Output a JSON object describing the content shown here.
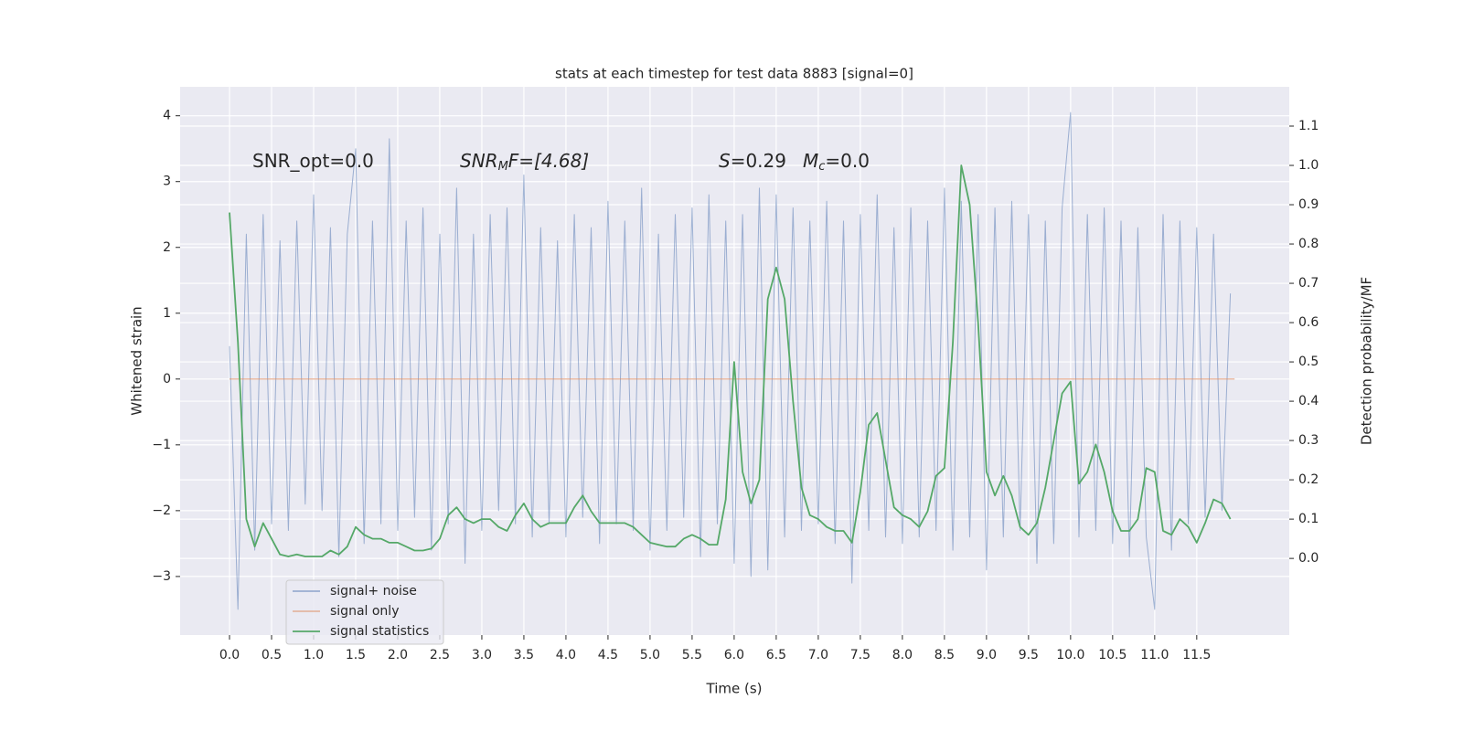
{
  "chart_data": {
    "type": "line",
    "title": "stats at each timestep for test data 8883 [signal=0]",
    "xlabel": "Time (s)",
    "ylabel": "Whitened strain",
    "y2label": "Detection probability/MF",
    "annotations": [
      [
        "SNR_opt=0.0"
      ],
      [
        "SNR",
        "M",
        "F=[4.68]"
      ],
      [
        "S",
        "=0.29",
        "M",
        "c",
        "=0.0"
      ]
    ],
    "grid": true,
    "legend": "lower left",
    "xlim": [
      -0.587,
      12.6
    ],
    "ylim": [
      -3.89,
      4.44
    ],
    "y2lim": [
      -0.195,
      1.2
    ],
    "xticks": [
      {
        "value": 0,
        "label": "0.0"
      },
      {
        "value": 0.5,
        "label": "0.5"
      },
      {
        "value": 1,
        "label": "1.0"
      },
      {
        "value": 1.5,
        "label": "1.5"
      },
      {
        "value": 2,
        "label": "2.0"
      },
      {
        "value": 2.5,
        "label": "2.5"
      },
      {
        "value": 3,
        "label": "3.0"
      },
      {
        "value": 3.5,
        "label": "3.5"
      },
      {
        "value": 4,
        "label": "4.0"
      },
      {
        "value": 4.5,
        "label": "4.5"
      },
      {
        "value": 5,
        "label": "5.0"
      },
      {
        "value": 5.5,
        "label": "5.5"
      },
      {
        "value": 6,
        "label": "6.0"
      },
      {
        "value": 6.5,
        "label": "6.5"
      },
      {
        "value": 7,
        "label": "7.0"
      },
      {
        "value": 7.5,
        "label": "7.5"
      },
      {
        "value": 8,
        "label": "8.0"
      },
      {
        "value": 8.5,
        "label": "8.5"
      },
      {
        "value": 9,
        "label": "9.0"
      },
      {
        "value": 9.5,
        "label": "9.5"
      },
      {
        "value": 10,
        "label": "10.0"
      },
      {
        "value": 10.5,
        "label": "10.5"
      },
      {
        "value": 11,
        "label": "11.0"
      },
      {
        "value": 11.5,
        "label": "11.5"
      }
    ],
    "yticks": [
      {
        "value": -3,
        "label": "−3"
      },
      {
        "value": -2,
        "label": "−2"
      },
      {
        "value": -1,
        "label": "−1"
      },
      0,
      1,
      2,
      3,
      4
    ],
    "y2ticks": [
      {
        "value": 0,
        "label": "0.0"
      },
      0.1,
      0.2,
      0.3,
      0.4,
      0.5,
      0.6,
      0.7,
      0.8,
      0.9,
      {
        "value": 1,
        "label": "1.0"
      },
      1.1
    ],
    "x": [
      0.0,
      0.1,
      0.2,
      0.3,
      0.4,
      0.5,
      0.6,
      0.7,
      0.8,
      0.9,
      1.0,
      1.1,
      1.2,
      1.3,
      1.4,
      1.5,
      1.6,
      1.7,
      1.8,
      1.9,
      2.0,
      2.1,
      2.2,
      2.3,
      2.4,
      2.5,
      2.6,
      2.7,
      2.8,
      2.9,
      3.0,
      3.1,
      3.2,
      3.3,
      3.4,
      3.5,
      3.6,
      3.7,
      3.8,
      3.9,
      4.0,
      4.1,
      4.2,
      4.3,
      4.4,
      4.5,
      4.6,
      4.7,
      4.8,
      4.9,
      5.0,
      5.1,
      5.2,
      5.3,
      5.4,
      5.5,
      5.6,
      5.7,
      5.8,
      5.9,
      6.0,
      6.1,
      6.2,
      6.3,
      6.4,
      6.5,
      6.6,
      6.7,
      6.8,
      6.9,
      7.0,
      7.1,
      7.2,
      7.3,
      7.4,
      7.5,
      7.6,
      7.7,
      7.8,
      7.9,
      8.0,
      8.1,
      8.2,
      8.3,
      8.4,
      8.5,
      8.6,
      8.7,
      8.8,
      8.9,
      9.0,
      9.1,
      9.2,
      9.3,
      9.4,
      9.5,
      9.6,
      9.7,
      9.8,
      9.9,
      10.0,
      10.1,
      10.2,
      10.3,
      10.4,
      10.5,
      10.6,
      10.7,
      10.8,
      10.9,
      11.0,
      11.1,
      11.2,
      11.3,
      11.4,
      11.5,
      11.6,
      11.7,
      11.8,
      11.9
    ],
    "series": [
      {
        "name": "signal+ noise",
        "color": "#4c72b0",
        "values": [
          0.5,
          -3.5,
          2.2,
          -2.6,
          2.5,
          -2.2,
          2.1,
          -2.3,
          2.4,
          -1.9,
          2.8,
          -2.0,
          2.3,
          -2.7,
          2.2,
          3.5,
          -2.5,
          2.4,
          -2.2,
          3.65,
          -2.3,
          2.4,
          -2.1,
          2.6,
          -2.6,
          2.2,
          -2.2,
          2.9,
          -2.8,
          2.2,
          -2.3,
          2.5,
          -2.0,
          2.6,
          -2.2,
          3.1,
          -2.4,
          2.3,
          -2.2,
          2.1,
          -2.4,
          2.5,
          -2.1,
          2.3,
          -2.5,
          2.7,
          -2.2,
          2.4,
          -2.3,
          2.9,
          -2.6,
          2.2,
          -2.3,
          2.5,
          -2.1,
          2.6,
          -2.7,
          2.8,
          -2.2,
          2.4,
          -2.8,
          2.5,
          -3.0,
          2.9,
          -2.9,
          2.8,
          -2.4,
          2.6,
          -2.3,
          2.4,
          -2.2,
          2.7,
          -2.5,
          2.4,
          -3.1,
          2.5,
          -2.3,
          2.8,
          -2.4,
          2.3,
          -2.5,
          2.6,
          -2.4,
          2.4,
          -2.3,
          2.9,
          -2.6,
          2.7,
          -2.4,
          2.5,
          -2.9,
          2.6,
          -2.4,
          2.7,
          -2.3,
          2.5,
          -2.8,
          2.4,
          -2.5,
          2.6,
          4.05,
          -2.4,
          2.5,
          -2.3,
          2.6,
          -2.5,
          2.4,
          -2.7,
          2.3,
          -2.4,
          -3.5,
          2.5,
          -2.6,
          2.4,
          -2.2,
          2.3,
          -2.1,
          2.2,
          -2.0,
          1.3
        ]
      },
      {
        "name": "signal only",
        "color": "#dd8452",
        "x": [
          0.0,
          11.95
        ],
        "values": [
          0,
          0
        ]
      },
      {
        "name": "signal statistics",
        "color": "#55a868",
        "axis": "y2",
        "values": [
          0.88,
          0.55,
          0.1,
          0.03,
          0.09,
          0.05,
          0.01,
          0.005,
          0.01,
          0.005,
          0.005,
          0.005,
          0.02,
          0.01,
          0.03,
          0.08,
          0.06,
          0.05,
          0.05,
          0.04,
          0.04,
          0.03,
          0.02,
          0.02,
          0.025,
          0.05,
          0.11,
          0.13,
          0.1,
          0.09,
          0.1,
          0.1,
          0.08,
          0.07,
          0.11,
          0.14,
          0.1,
          0.08,
          0.09,
          0.09,
          0.09,
          0.13,
          0.16,
          0.12,
          0.09,
          0.09,
          0.09,
          0.09,
          0.08,
          0.06,
          0.04,
          0.035,
          0.03,
          0.03,
          0.05,
          0.06,
          0.05,
          0.035,
          0.035,
          0.15,
          0.5,
          0.22,
          0.14,
          0.2,
          0.66,
          0.74,
          0.66,
          0.4,
          0.18,
          0.11,
          0.1,
          0.08,
          0.07,
          0.07,
          0.04,
          0.17,
          0.34,
          0.37,
          0.25,
          0.13,
          0.11,
          0.1,
          0.08,
          0.12,
          0.21,
          0.23,
          0.55,
          1.0,
          0.9,
          0.6,
          0.22,
          0.16,
          0.21,
          0.16,
          0.08,
          0.06,
          0.09,
          0.18,
          0.3,
          0.42,
          0.45,
          0.19,
          0.22,
          0.29,
          0.22,
          0.12,
          0.07,
          0.07,
          0.1,
          0.23,
          0.22,
          0.07,
          0.06,
          0.1,
          0.08,
          0.04,
          0.09,
          0.15,
          0.14,
          0.1
        ]
      }
    ]
  }
}
